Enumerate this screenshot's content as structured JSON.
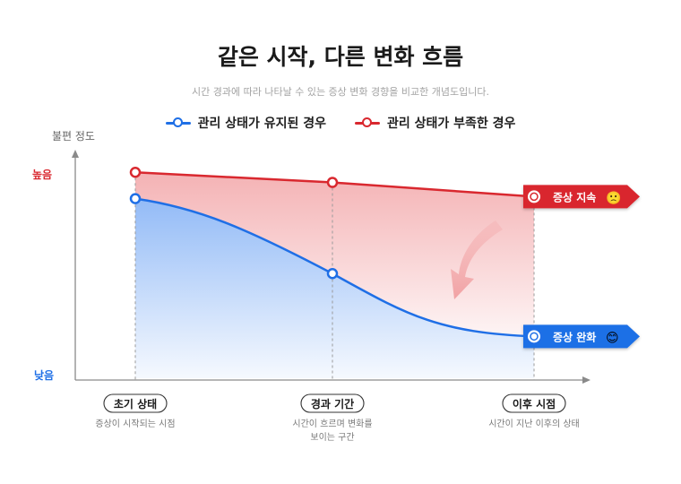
{
  "title": "같은 시작, 다른 변화 흐름",
  "subtitle": "시간 경과에 따라 나타날 수 있는 증상 변화 경향을 비교한 개념도입니다.",
  "colors": {
    "maintained": "#1f6fe6",
    "lacking": "#d9282f"
  },
  "chart_data": {
    "type": "line",
    "ylabel": "불편 정도",
    "y_high_label": "높음",
    "y_low_label": "낮음",
    "ylim": [
      0,
      100
    ],
    "categories": [
      "초기 상태",
      "경과 기간",
      "이후 시점"
    ],
    "category_notes": [
      "증상이 시작되는 시점",
      "시간이 흐르며 변화를\n보이는 구간",
      "시간이 지난 이후의 상태"
    ],
    "series": [
      {
        "name": "관리 상태가 유지된 경우",
        "values": [
          86,
          49,
          18
        ],
        "end_label": "증상 완화",
        "end_emoji": "😊"
      },
      {
        "name": "관리 상태가 부족한 경우",
        "values": [
          99,
          94,
          87
        ],
        "end_label": "증상 지속",
        "end_emoji": "🙁"
      }
    ]
  }
}
